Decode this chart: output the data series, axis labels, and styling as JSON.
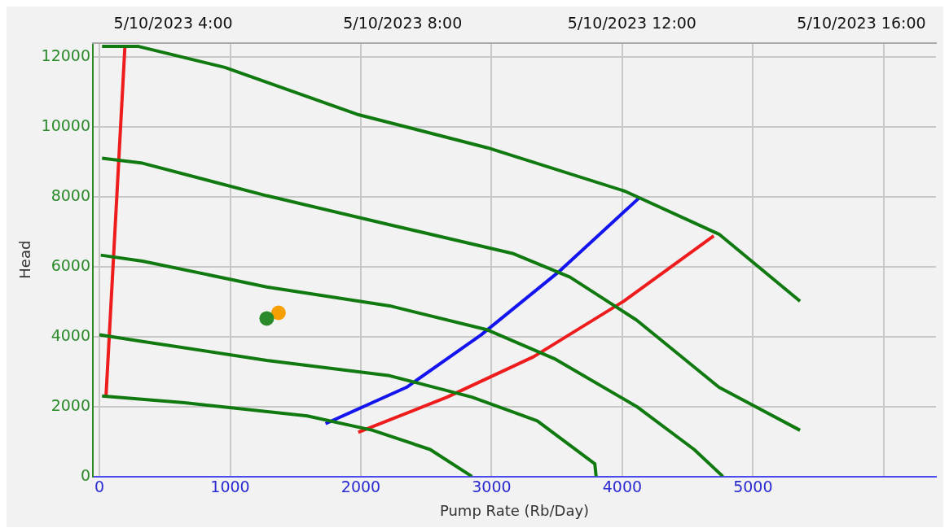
{
  "chart_data": {
    "type": "line",
    "xlabel": "Pump Rate (Rb/Day)",
    "ylabel": "Head",
    "xlim": [
      -50,
      6400
    ],
    "ylim": [
      0,
      12400
    ],
    "xticks": [
      0,
      1000,
      2000,
      3000,
      4000,
      5000,
      {
        "value": 6000,
        "label": null
      }
    ],
    "yticks": [
      0,
      2000,
      4000,
      6000,
      8000,
      10000,
      12000
    ],
    "x2lim": [
      "2023-05-10T02:36",
      "2023-05-10T17:18"
    ],
    "x2ticks": [
      {
        "value": "2023-05-10T04:00",
        "label": "5/10/2023 4:00"
      },
      {
        "value": "2023-05-10T08:00",
        "label": "5/10/2023 8:00"
      },
      {
        "value": "2023-05-10T12:00",
        "label": "5/10/2023 12:00"
      },
      {
        "value": "2023-05-10T16:00",
        "label": "5/10/2023 16:00"
      }
    ],
    "grid": true,
    "series": [
      {
        "marker": "none",
        "color": "#107a10",
        "x": [
          20,
          300,
          960,
          1970,
          2970,
          4020,
          4740,
          5360
        ],
        "values": [
          12300,
          12300,
          11700,
          10360,
          9400,
          8160,
          6930,
          5010
        ]
      },
      {
        "marker": "none",
        "color": "#107a10",
        "x": [
          20,
          330,
          1280,
          2220,
          3160,
          3600,
          4110,
          4740,
          5360
        ],
        "values": [
          9100,
          8960,
          8030,
          7200,
          6380,
          5700,
          4470,
          2550,
          1320
        ]
      },
      {
        "marker": "none",
        "color": "#107a10",
        "x": [
          10,
          330,
          1280,
          2220,
          2970,
          3480,
          4110,
          4550,
          4770
        ],
        "values": [
          6330,
          6160,
          5420,
          4880,
          4190,
          3370,
          2000,
          770,
          0
        ]
      },
      {
        "marker": "none",
        "color": "#107a10",
        "x": [
          0,
          330,
          1280,
          2220,
          2850,
          3350,
          3790,
          3800
        ],
        "values": [
          4050,
          3860,
          3320,
          2880,
          2270,
          1590,
          360,
          0
        ]
      },
      {
        "marker": "none",
        "color": "#107a10",
        "x": [
          20,
          650,
          1590,
          2090,
          2530,
          2850
        ],
        "values": [
          2300,
          2110,
          1730,
          1320,
          770,
          0
        ]
      },
      {
        "marker": "none",
        "color": "#ee1c1c",
        "x": [
          195,
          50
        ],
        "values": [
          12300,
          2270
        ]
      },
      {
        "marker": "none",
        "color": "#1414ee",
        "x": [
          1730,
          2350,
          2920,
          3510,
          4130
        ],
        "values": [
          1510,
          2550,
          4050,
          5840,
          7970
        ]
      },
      {
        "marker": "none",
        "color": "#ee1c1c",
        "x": [
          1980,
          2660,
          3320,
          4010,
          4700
        ],
        "values": [
          1260,
          2270,
          3420,
          5010,
          6880
        ]
      },
      {
        "type": "scatter",
        "marker": "circle",
        "color": "#2a8a2a",
        "x": [
          1280
        ],
        "values": [
          4520
        ]
      },
      {
        "type": "scatter",
        "marker": "circle",
        "color": "#f5a000",
        "x": [
          1370
        ],
        "values": [
          4680
        ]
      }
    ]
  }
}
